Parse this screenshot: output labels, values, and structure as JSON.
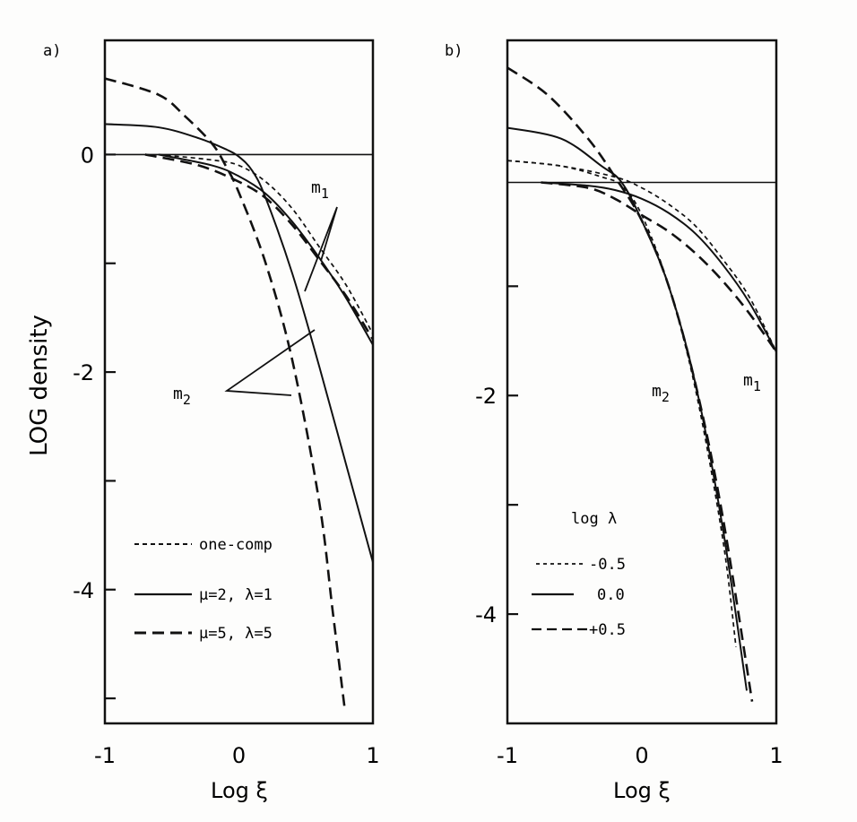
{
  "chart_data": [
    {
      "type": "line",
      "panel_label": "a)",
      "xlabel": "Log ξ",
      "ylabel": "LOG density",
      "xlim": [
        -1,
        1
      ],
      "ylim": [
        -5.23,
        1.05
      ],
      "xticks": [
        -1,
        0,
        1
      ],
      "yticks": [
        0,
        -2,
        -4
      ],
      "reference_line": 0,
      "annotations": [
        "m1",
        "m2"
      ],
      "legend": [
        "one-comp",
        "μ=2, λ=1",
        "μ=5, λ=5"
      ],
      "series": [
        {
          "name": "one-comp",
          "group": "m1",
          "style": "short-dash",
          "points": [
            [
              -0.6,
              0
            ],
            [
              -0.2,
              -0.05
            ],
            [
              0,
              -0.1
            ],
            [
              0.2,
              -0.25
            ],
            [
              0.4,
              -0.5
            ],
            [
              0.6,
              -0.85
            ],
            [
              0.8,
              -1.2
            ],
            [
              1,
              -1.65
            ]
          ]
        },
        {
          "name": "μ=2, λ=1",
          "group": "m1",
          "style": "solid",
          "points": [
            [
              -0.6,
              0
            ],
            [
              -0.2,
              -0.1
            ],
            [
              0,
              -0.2
            ],
            [
              0.2,
              -0.36
            ],
            [
              0.4,
              -0.62
            ],
            [
              0.6,
              -0.95
            ],
            [
              0.8,
              -1.32
            ],
            [
              1,
              -1.75
            ]
          ]
        },
        {
          "name": "μ=5, λ=5",
          "group": "m1",
          "style": "long-dash",
          "points": [
            [
              -0.7,
              0
            ],
            [
              -0.3,
              -0.1
            ],
            [
              0,
              -0.25
            ],
            [
              0.2,
              -0.4
            ],
            [
              0.4,
              -0.65
            ],
            [
              0.6,
              -0.97
            ],
            [
              0.8,
              -1.3
            ],
            [
              1,
              -1.7
            ]
          ]
        },
        {
          "name": "μ=2, λ=1",
          "group": "m2",
          "style": "solid",
          "points": [
            [
              -1,
              0.28
            ],
            [
              -0.6,
              0.25
            ],
            [
              -0.3,
              0.15
            ],
            [
              -0.1,
              0.05
            ],
            [
              0,
              -0.02
            ],
            [
              0.1,
              -0.15
            ],
            [
              0.2,
              -0.4
            ],
            [
              0.4,
              -1.1
            ],
            [
              0.6,
              -1.95
            ],
            [
              0.8,
              -2.85
            ],
            [
              1,
              -3.75
            ]
          ]
        },
        {
          "name": "μ=5, λ=5",
          "group": "m2",
          "style": "long-dash",
          "points": [
            [
              -1,
              0.7
            ],
            [
              -0.6,
              0.55
            ],
            [
              -0.4,
              0.35
            ],
            [
              -0.2,
              0.1
            ],
            [
              -0.1,
              -0.1
            ],
            [
              0,
              -0.35
            ],
            [
              0.2,
              -1.0
            ],
            [
              0.4,
              -1.9
            ],
            [
              0.6,
              -3.2
            ],
            [
              0.7,
              -4.2
            ],
            [
              0.79,
              -5.1
            ]
          ]
        }
      ]
    },
    {
      "type": "line",
      "panel_label": "b)",
      "xlabel": "Log ξ",
      "ylabel": "",
      "xlim": [
        -1,
        1
      ],
      "ylim": [
        -5.0,
        1.25
      ],
      "xticks": [
        -1,
        0,
        1
      ],
      "yticks": [
        -2,
        -4
      ],
      "reference_line": -0.05,
      "annotations": [
        "m1",
        "m2"
      ],
      "legend_title": "log λ",
      "legend": [
        "-0.5",
        "0.0",
        "+0.5"
      ],
      "series": [
        {
          "name": "-0.5",
          "group": "m1",
          "style": "short-dash",
          "points": [
            [
              -1,
              0.15
            ],
            [
              -0.6,
              0.1
            ],
            [
              -0.2,
              0
            ],
            [
              0,
              -0.1
            ],
            [
              0.2,
              -0.25
            ],
            [
              0.4,
              -0.45
            ],
            [
              0.6,
              -0.75
            ],
            [
              0.8,
              -1.1
            ],
            [
              1,
              -1.6
            ]
          ]
        },
        {
          "name": "0.0",
          "group": "m1",
          "style": "solid",
          "points": [
            [
              -0.75,
              -0.05
            ],
            [
              -0.4,
              -0.08
            ],
            [
              -0.2,
              -0.12
            ],
            [
              0,
              -0.2
            ],
            [
              0.2,
              -0.33
            ],
            [
              0.4,
              -0.52
            ],
            [
              0.6,
              -0.8
            ],
            [
              0.8,
              -1.15
            ],
            [
              1,
              -1.6
            ]
          ]
        },
        {
          "name": "+0.5",
          "group": "m1",
          "style": "long-dash",
          "points": [
            [
              -0.75,
              -0.05
            ],
            [
              -0.4,
              -0.1
            ],
            [
              -0.2,
              -0.2
            ],
            [
              0,
              -0.35
            ],
            [
              0.2,
              -0.5
            ],
            [
              0.4,
              -0.7
            ],
            [
              0.6,
              -0.95
            ],
            [
              0.8,
              -1.25
            ],
            [
              1,
              -1.6
            ]
          ]
        },
        {
          "name": "-0.5",
          "group": "m2",
          "style": "short-dash",
          "points": [
            [
              -1,
              0.15
            ],
            [
              -0.6,
              0.1
            ],
            [
              -0.3,
              0
            ],
            [
              -0.15,
              -0.08
            ],
            [
              0,
              -0.35
            ],
            [
              0.2,
              -1.0
            ],
            [
              0.4,
              -1.95
            ],
            [
              0.6,
              -3.3
            ],
            [
              0.7,
              -4.3
            ]
          ]
        },
        {
          "name": "0.0",
          "group": "m2",
          "style": "solid",
          "points": [
            [
              -1,
              0.45
            ],
            [
              -0.6,
              0.35
            ],
            [
              -0.3,
              0.1
            ],
            [
              -0.15,
              -0.05
            ],
            [
              0,
              -0.4
            ],
            [
              0.2,
              -1.0
            ],
            [
              0.4,
              -1.9
            ],
            [
              0.6,
              -3.2
            ],
            [
              0.78,
              -4.7
            ]
          ]
        },
        {
          "name": "+0.5",
          "group": "m2",
          "style": "long-dash",
          "points": [
            [
              -1,
              1.0
            ],
            [
              -0.7,
              0.75
            ],
            [
              -0.4,
              0.35
            ],
            [
              -0.2,
              0.0
            ],
            [
              0,
              -0.4
            ],
            [
              0.2,
              -1.0
            ],
            [
              0.4,
              -1.9
            ],
            [
              0.6,
              -3.1
            ],
            [
              0.82,
              -4.8
            ]
          ]
        }
      ]
    }
  ]
}
